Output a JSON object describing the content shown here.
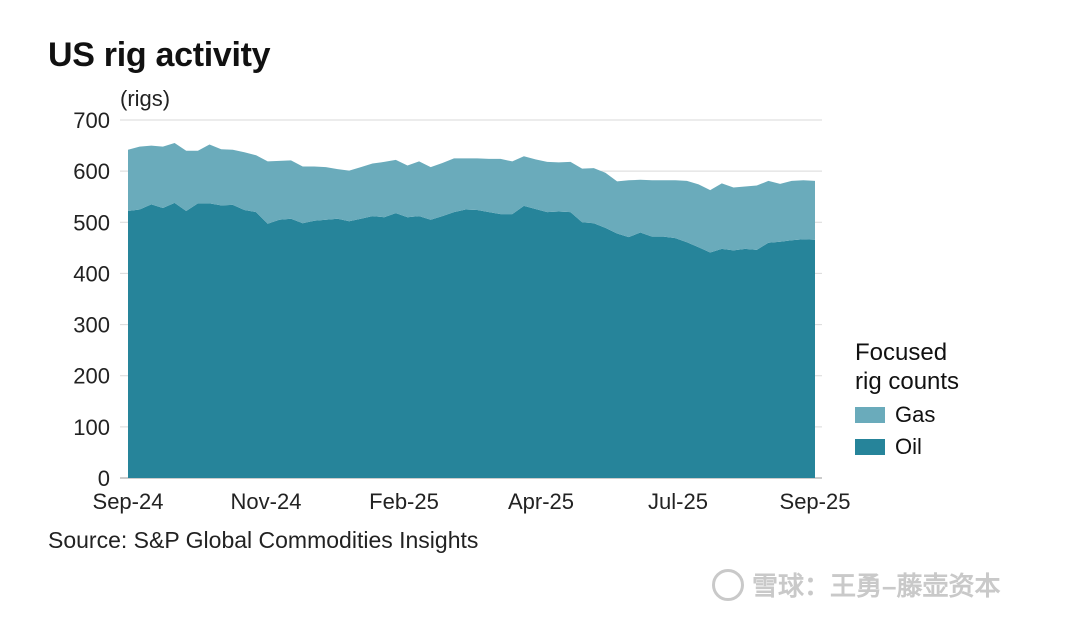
{
  "title": "US rig activity",
  "unit_label": "(rigs)",
  "source": "Source: S&P Global Commodities Insights",
  "watermark": "雪球：王勇–藤壶资本",
  "legend": {
    "title_line1": "Focused",
    "title_line2": "rig counts",
    "items": [
      {
        "label": "Gas",
        "color": "#6aabbb"
      },
      {
        "label": "Oil",
        "color": "#26849a"
      }
    ]
  },
  "chart_data": {
    "type": "area",
    "stacked": true,
    "ylim": [
      0,
      700
    ],
    "yticks": [
      0,
      100,
      200,
      300,
      400,
      500,
      600,
      700
    ],
    "x_tick_labels": [
      "Sep-24",
      "Nov-24",
      "Feb-25",
      "Apr-25",
      "Jul-25",
      "Sep-25"
    ],
    "grid": "horizontal",
    "legend_position": "right",
    "series": [
      {
        "name": "Oil",
        "color": "#26849a",
        "values": [
          522,
          525,
          535,
          528,
          538,
          522,
          537,
          537,
          533,
          534,
          524,
          520,
          497,
          505,
          507,
          498,
          503,
          505,
          507,
          502,
          507,
          512,
          510,
          518,
          510,
          512,
          505,
          512,
          520,
          525,
          524,
          520,
          516,
          516,
          532,
          526,
          520,
          521,
          520,
          500,
          498,
          489,
          478,
          471,
          480,
          472,
          472,
          469,
          461,
          451,
          441,
          448,
          445,
          448,
          446,
          460,
          462,
          465,
          467,
          466
        ]
      },
      {
        "name": "Gas",
        "color": "#6aabbb",
        "values": [
          120,
          123,
          115,
          120,
          117,
          118,
          103,
          115,
          110,
          108,
          113,
          111,
          122,
          115,
          114,
          111,
          106,
          103,
          97,
          99,
          101,
          103,
          108,
          104,
          101,
          107,
          103,
          104,
          105,
          100,
          101,
          104,
          108,
          103,
          97,
          97,
          98,
          96,
          98,
          105,
          108,
          108,
          102,
          111,
          103,
          110,
          110,
          113,
          120,
          123,
          122,
          128,
          123,
          122,
          126,
          121,
          113,
          116,
          115,
          115
        ]
      }
    ]
  }
}
